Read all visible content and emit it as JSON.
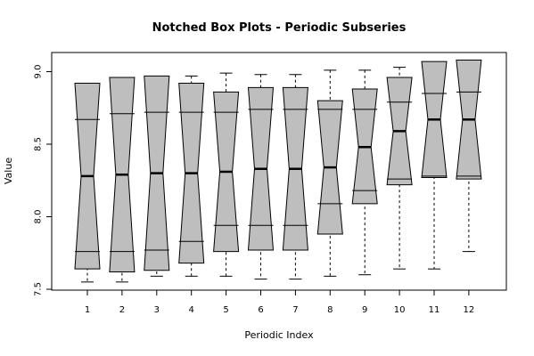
{
  "chart_data": {
    "type": "boxplot",
    "notched": true,
    "title": "Notched Box Plots - Periodic Subseries",
    "xlabel": "Periodic Index",
    "ylabel": "Value",
    "ylim": [
      7.5,
      9.15
    ],
    "yticks": [
      "7.5",
      "8.0",
      "8.5",
      "9.0"
    ],
    "box_fill": "#bebebe",
    "categories": [
      "1",
      "2",
      "3",
      "4",
      "5",
      "6",
      "7",
      "8",
      "9",
      "10",
      "11",
      "12"
    ],
    "boxes": [
      {
        "label": "1",
        "min": 7.55,
        "q1": 7.76,
        "median": 8.28,
        "q3": 8.67,
        "max": 8.87,
        "notch_low": 7.64,
        "notch_high": 8.92
      },
      {
        "label": "2",
        "min": 7.55,
        "q1": 7.76,
        "median": 8.29,
        "q3": 8.71,
        "max": 8.92,
        "notch_low": 7.62,
        "notch_high": 8.96
      },
      {
        "label": "3",
        "min": 7.59,
        "q1": 7.77,
        "median": 8.3,
        "q3": 8.72,
        "max": 8.96,
        "notch_low": 7.63,
        "notch_high": 8.97
      },
      {
        "label": "4",
        "min": 7.59,
        "q1": 7.83,
        "median": 8.3,
        "q3": 8.72,
        "max": 8.97,
        "notch_low": 7.68,
        "notch_high": 8.92
      },
      {
        "label": "5",
        "min": 7.59,
        "q1": 7.94,
        "median": 8.31,
        "q3": 8.72,
        "max": 8.99,
        "notch_low": 7.76,
        "notch_high": 8.86
      },
      {
        "label": "6",
        "min": 7.57,
        "q1": 7.94,
        "median": 8.33,
        "q3": 8.74,
        "max": 8.98,
        "notch_low": 7.77,
        "notch_high": 8.89
      },
      {
        "label": "7",
        "min": 7.57,
        "q1": 7.94,
        "median": 8.33,
        "q3": 8.74,
        "max": 8.98,
        "notch_low": 7.77,
        "notch_high": 8.89
      },
      {
        "label": "8",
        "min": 7.59,
        "q1": 8.09,
        "median": 8.34,
        "q3": 8.74,
        "max": 9.01,
        "notch_low": 7.88,
        "notch_high": 8.8
      },
      {
        "label": "9",
        "min": 7.6,
        "q1": 8.18,
        "median": 8.48,
        "q3": 8.74,
        "max": 9.01,
        "notch_low": 8.09,
        "notch_high": 8.88
      },
      {
        "label": "10",
        "min": 7.64,
        "q1": 8.26,
        "median": 8.59,
        "q3": 8.79,
        "max": 9.03,
        "notch_low": 8.22,
        "notch_high": 8.96
      },
      {
        "label": "11",
        "min": 7.64,
        "q1": 8.28,
        "median": 8.67,
        "q3": 8.85,
        "max": 9.05,
        "notch_low": 8.27,
        "notch_high": 9.07
      },
      {
        "label": "12",
        "min": 7.76,
        "q1": 8.28,
        "median": 8.67,
        "q3": 8.86,
        "max": 9.05,
        "notch_low": 8.26,
        "notch_high": 9.08
      }
    ]
  }
}
